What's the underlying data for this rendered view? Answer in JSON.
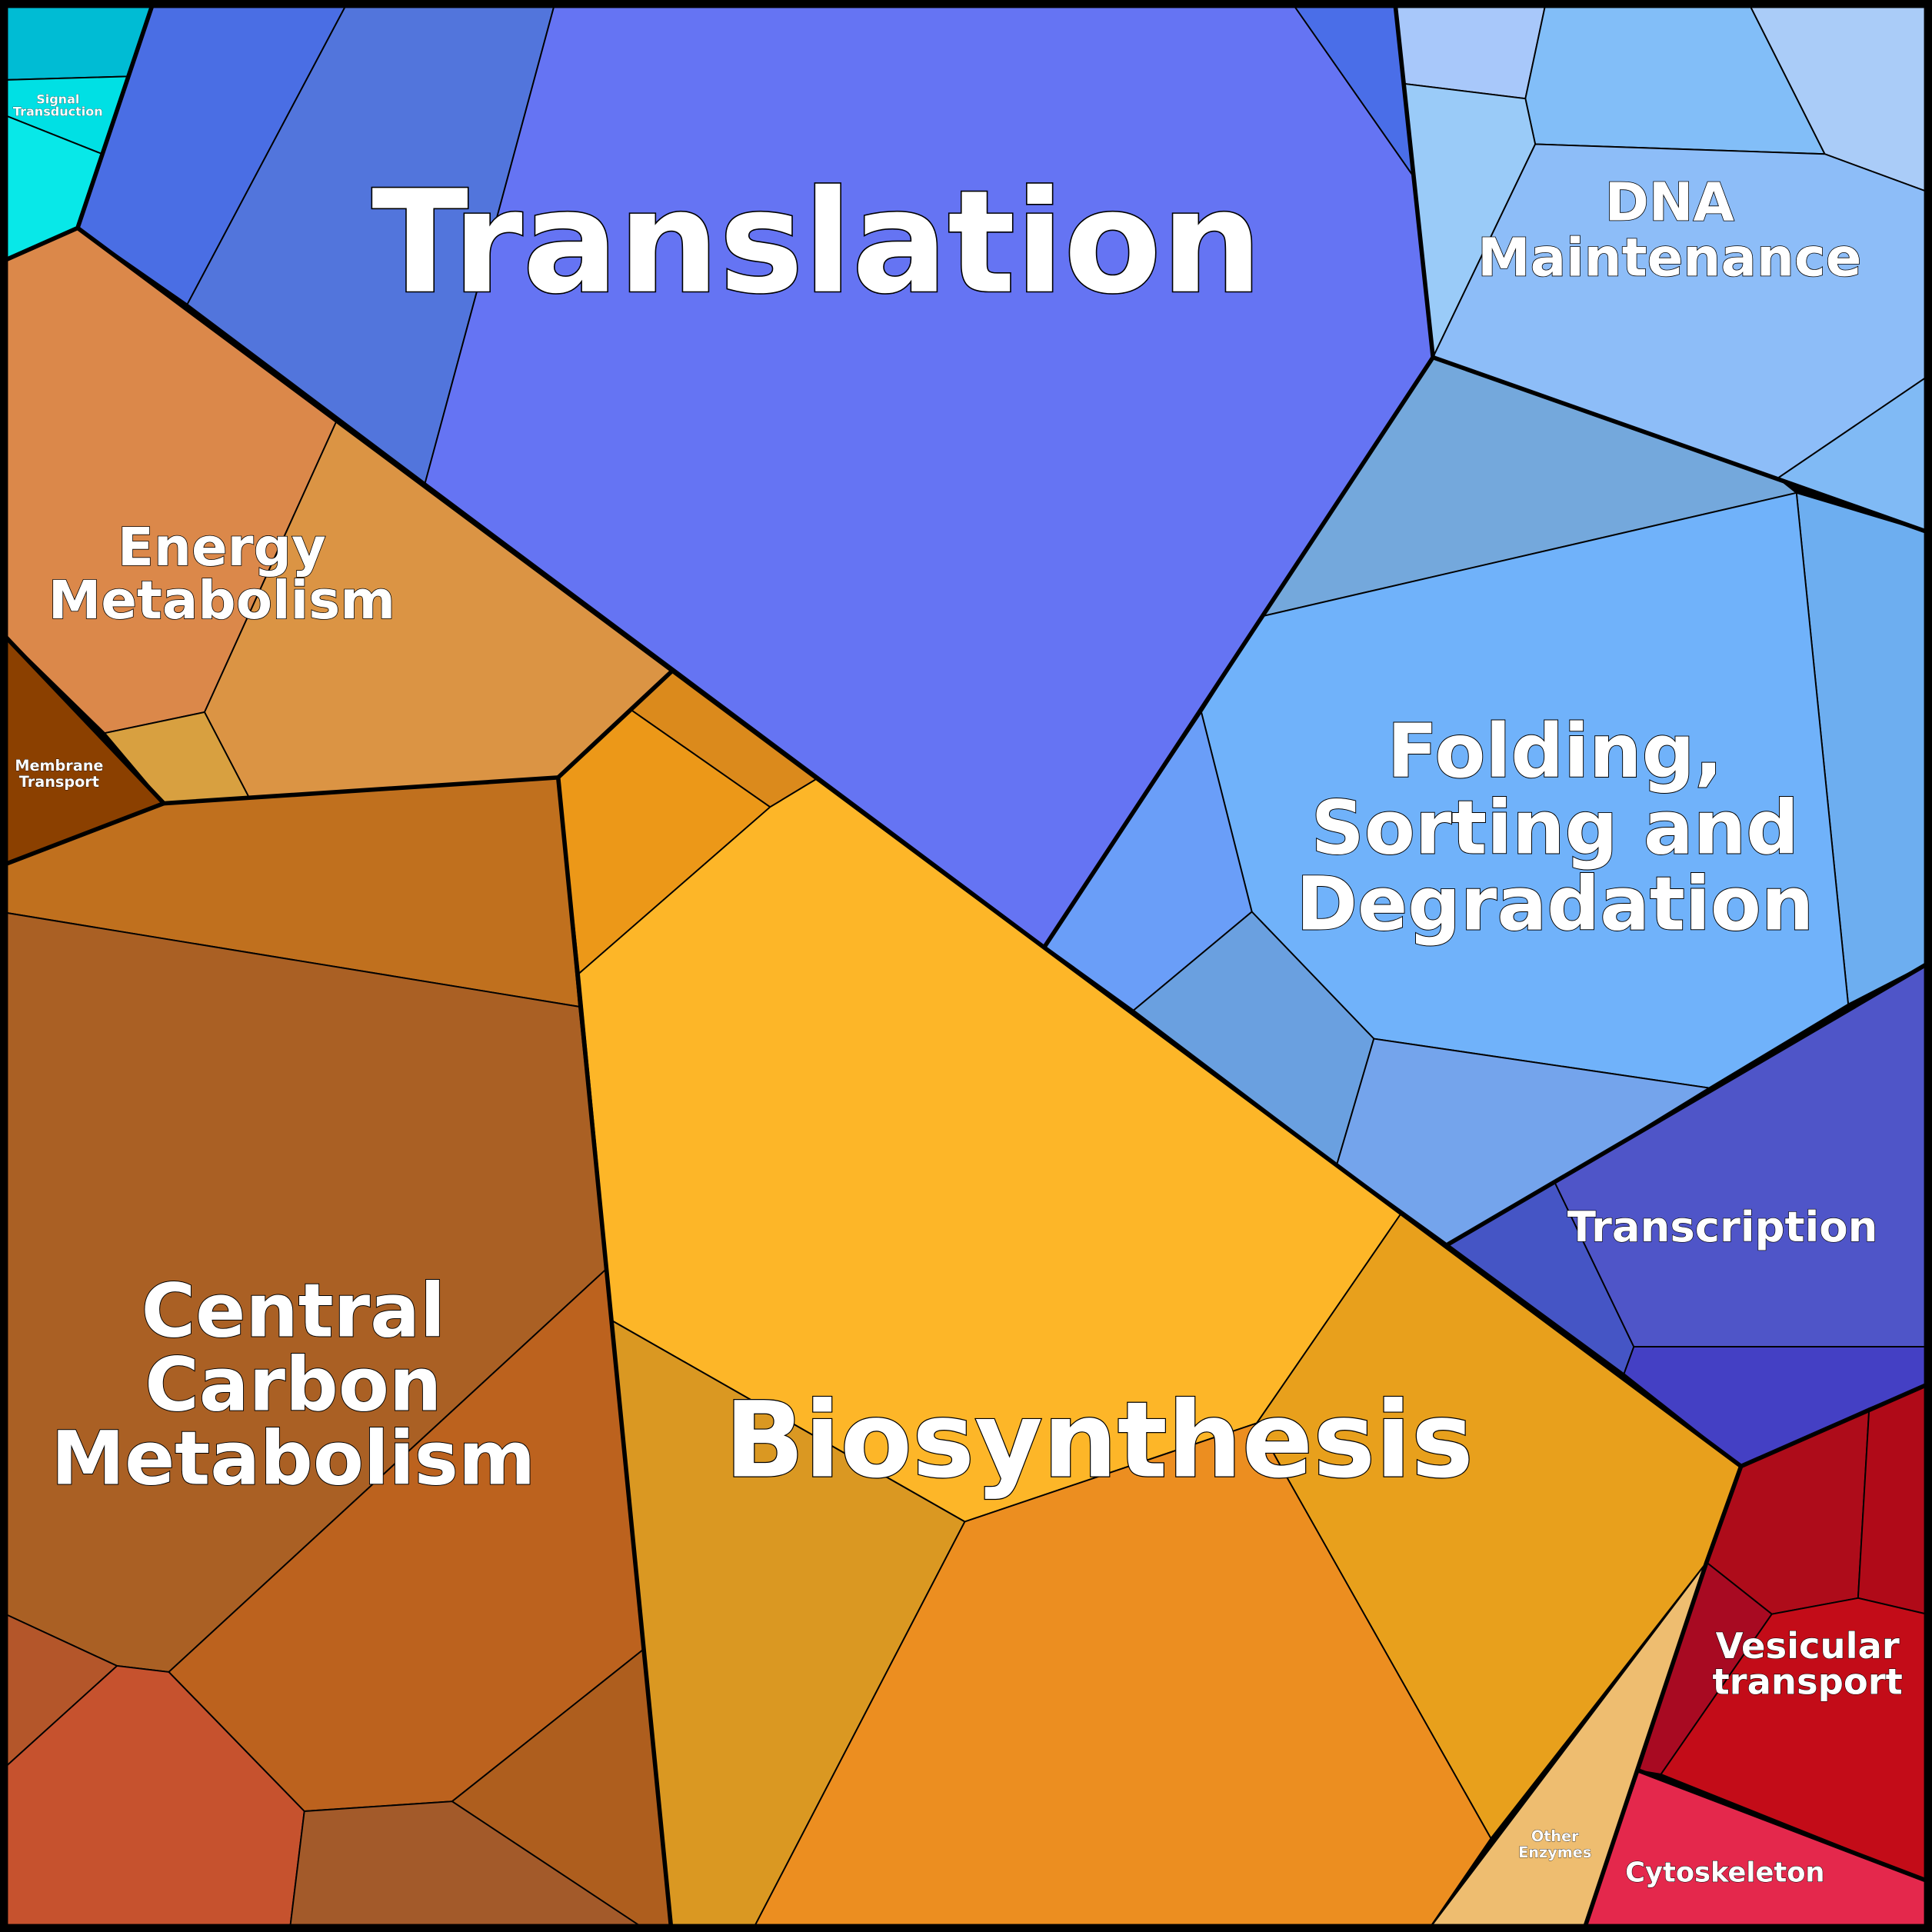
{
  "labels": [
    {
      "lines": [
        "Translation"
      ]
    },
    {
      "lines": [
        "Biosynthesis"
      ]
    },
    {
      "lines": [
        "Central",
        "Carbon",
        "Metabolism"
      ]
    },
    {
      "lines": [
        "DNA",
        "Maintenance"
      ]
    },
    {
      "lines": [
        "Energy",
        "Metabolism"
      ]
    },
    {
      "lines": [
        "Folding,",
        "Sorting and",
        "Degradation"
      ]
    },
    {
      "lines": [
        "Transcription"
      ]
    },
    {
      "lines": [
        "Vesicular",
        "transport"
      ]
    },
    {
      "lines": [
        "Cytoskeleton"
      ]
    },
    {
      "lines": [
        "Other",
        "Enzymes"
      ]
    },
    {
      "lines": [
        "Signal",
        "Transduction"
      ]
    },
    {
      "lines": [
        "Membrane",
        "Transport"
      ]
    }
  ]
}
